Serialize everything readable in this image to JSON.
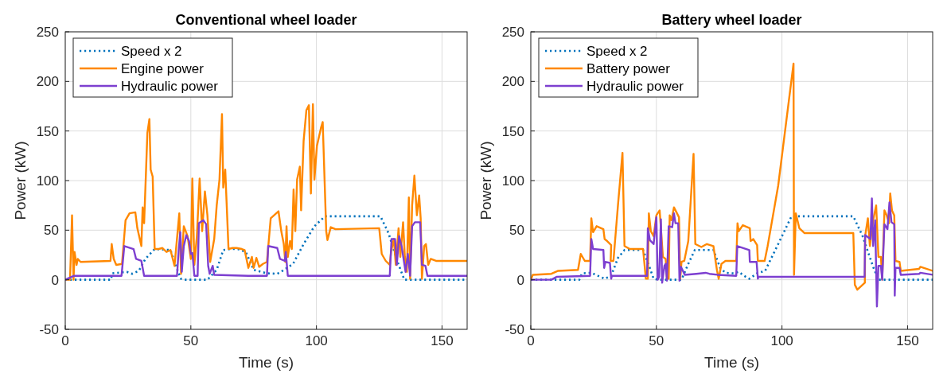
{
  "chart_data": [
    {
      "type": "line",
      "title": "Conventional wheel loader",
      "xlabel": "Time (s)",
      "ylabel": "Power (kW)",
      "xlim": [
        0,
        160
      ],
      "ylim": [
        -50,
        250
      ],
      "xticks": [
        0,
        50,
        100,
        150
      ],
      "yticks": [
        -50,
        0,
        50,
        100,
        150,
        200,
        250
      ],
      "grid": true,
      "legend": "top left",
      "series": [
        {
          "name": "Speed x 2",
          "color": "#0072bd",
          "line_style": "dotted",
          "x": [
            0,
            18.2,
            18.7,
            24.5,
            26.6,
            29.3,
            31.9,
            35.6,
            41.9,
            44,
            46.1,
            47.2,
            56.6,
            60.3,
            62.9,
            65.6,
            68.7,
            71.9,
            75,
            80.3,
            84.4,
            86.5,
            90.7,
            94.9,
            99.2,
            103.4,
            125.5,
            128.7,
            132.3,
            135,
            160
          ],
          "values": [
            0,
            0,
            6.5,
            8,
            6,
            9,
            21,
            31,
            30,
            14,
            1,
            0,
            0,
            10,
            30,
            31,
            31,
            28,
            10,
            6.5,
            6,
            9,
            16,
            36,
            54,
            64,
            64,
            47,
            18,
            0,
            0
          ]
        },
        {
          "name": "Engine power",
          "color": "#ff8800",
          "line_style": "solid",
          "x": [
            0,
            1.9,
            2.7,
            3.3,
            3.7,
            4.5,
            5,
            6.1,
            18,
            18.5,
            19.3,
            20.3,
            22.6,
            24,
            25.6,
            27.9,
            28.7,
            30.3,
            30.8,
            31.4,
            32.7,
            33.5,
            34,
            34.8,
            35.6,
            37.2,
            38.7,
            40.3,
            41.9,
            43.5,
            45.4,
            46.1,
            47.2,
            48.7,
            50,
            50.6,
            51.4,
            52.4,
            53.5,
            54.5,
            55.6,
            56.6,
            57.7,
            59.3,
            60.3,
            61.4,
            62.4,
            62.9,
            63.7,
            65,
            66.6,
            68.2,
            70.3,
            71.4,
            72.9,
            74.3,
            75,
            76.1,
            77.2,
            78.7,
            80.3,
            81.8,
            84.9,
            86,
            87,
            87.6,
            88.1,
            88.6,
            89.5,
            90.2,
            90.9,
            91.6,
            92.3,
            93.4,
            93.9,
            94.9,
            96,
            97,
            97.8,
            98.6,
            99.2,
            100.2,
            101.8,
            102.5,
            103.9,
            104.4,
            105.7,
            107.6,
            125,
            126,
            127.6,
            129.2,
            129.7,
            130.8,
            131.6,
            132.7,
            133.4,
            134.5,
            135.2,
            136,
            136.8,
            137.3,
            138.1,
            139,
            140,
            140.9,
            141.5,
            142,
            142.9,
            143.6,
            144.5,
            145.5,
            147.6,
            160
          ],
          "values": [
            0,
            0,
            65,
            0,
            28,
            15,
            21,
            18,
            19,
            36,
            21,
            15,
            16,
            60,
            67,
            68,
            52,
            34,
            73,
            57,
            148,
            162,
            111,
            104,
            31,
            31,
            32,
            28,
            30,
            14,
            67,
            6,
            54,
            44,
            21,
            102,
            15,
            44,
            102,
            49,
            89,
            65,
            18,
            41,
            75,
            101,
            167,
            93,
            111,
            31,
            32,
            32,
            31,
            30,
            12,
            23,
            12,
            22,
            13,
            16,
            18,
            62,
            69,
            49,
            36,
            18,
            54,
            23,
            39,
            31,
            91,
            49,
            101,
            114,
            70,
            140,
            171,
            176,
            87,
            177,
            101,
            135,
            153,
            159,
            49,
            40,
            53,
            51,
            52,
            26,
            19,
            15,
            28,
            41,
            15,
            52,
            23,
            58,
            23,
            8,
            83,
            1,
            75,
            105,
            65,
            85,
            62,
            1,
            34,
            36,
            15,
            21,
            19,
            19
          ]
        },
        {
          "name": "Hydraulic power",
          "color": "#7d3fd0",
          "line_style": "solid",
          "x": [
            0,
            3.5,
            22.4,
            23.5,
            27.2,
            28.2,
            30.3,
            31.4,
            44.5,
            45.1,
            45.8,
            46.4,
            47.2,
            48.2,
            49.3,
            50,
            50.6,
            51.4,
            52.7,
            53.2,
            55,
            56.1,
            56.9,
            57.5,
            58.7,
            59.3,
            72.9,
            80.3,
            80.8,
            84.4,
            85.5,
            87.4,
            87.8,
            88.6,
            129.2,
            129.9,
            131.3,
            132,
            132.9,
            133.9,
            135.5,
            136.4,
            137.3,
            138.1,
            139.2,
            141.3,
            142,
            143.4,
            144.2,
            160
          ],
          "values": [
            0,
            4,
            4,
            34,
            31,
            21,
            19,
            4,
            4,
            28,
            48,
            8,
            34,
            45,
            39,
            26,
            27,
            4,
            4,
            57,
            60,
            56,
            14,
            6,
            14,
            5,
            4,
            4,
            34,
            32,
            21,
            19,
            28,
            4,
            4,
            41,
            41,
            15,
            44,
            34,
            8,
            26,
            4,
            54,
            58,
            58,
            15,
            14,
            4,
            4
          ]
        }
      ]
    },
    {
      "type": "line",
      "title": "Battery wheel loader",
      "xlabel": "Time (s)",
      "ylabel": "Power (kW)",
      "xlim": [
        0,
        160
      ],
      "ylim": [
        -50,
        250
      ],
      "xticks": [
        0,
        50,
        100,
        150
      ],
      "yticks": [
        -50,
        0,
        50,
        100,
        150,
        200,
        250
      ],
      "grid": true,
      "legend": "top left",
      "series": [
        {
          "name": "Speed x 2",
          "color": "#0072bd",
          "line_style": "dotted",
          "x": [
            0,
            19.3,
            20.4,
            24.1,
            26.7,
            29.4,
            32,
            34.7,
            37.3,
            44.7,
            46.8,
            48.9,
            51,
            60,
            62.7,
            65.3,
            72.7,
            75.4,
            77.5,
            80.7,
            82.8,
            84.9,
            87,
            90.1,
            93.3,
            98.5,
            103.8,
            104.8,
            128.4,
            132.1,
            136.3,
            138.4,
            160
          ],
          "values": [
            0,
            0,
            6.5,
            7,
            4,
            1,
            4,
            22,
            30,
            30,
            16,
            1,
            0,
            0,
            16,
            30,
            30,
            12,
            7,
            6.5,
            8,
            4,
            1,
            6.5,
            9,
            36,
            64,
            64,
            64,
            44,
            13,
            0,
            0
          ]
        },
        {
          "name": "Battery power",
          "color": "#ff8800",
          "line_style": "solid",
          "x": [
            0,
            0.8,
            8.2,
            10.9,
            18.8,
            19.9,
            21.5,
            23.6,
            24.1,
            24.8,
            26.2,
            28.9,
            29.4,
            30.4,
            32,
            31.8,
            32.9,
            34.7,
            36.5,
            37.3,
            39.4,
            44.7,
            45.8,
            46.6,
            47,
            47.8,
            48.9,
            50,
            51.3,
            52.6,
            53.7,
            54.2,
            54.9,
            55.3,
            56,
            57,
            57.6,
            59,
            59.5,
            60,
            61.1,
            62.7,
            64.8,
            65.5,
            67.9,
            70.1,
            72.7,
            74.1,
            74.8,
            75.9,
            77.5,
            81.8,
            82.3,
            82.8,
            84.4,
            87.2,
            87.5,
            88.6,
            90.1,
            90.4,
            93.1,
            94.3,
            98.5,
            104.6,
            104.8,
            105.5,
            106.9,
            109,
            128.4,
            129,
            130,
            133,
            133.1,
            134.2,
            135,
            136.3,
            137.5,
            138.4,
            139.4,
            139.9,
            140.8,
            141.7,
            142.6,
            143.1,
            143.8,
            144.7,
            145.2,
            146.8,
            147.3,
            154.6,
            155.1,
            160
          ],
          "values": [
            0,
            5,
            6,
            9,
            10,
            26,
            19,
            19,
            62,
            48,
            54,
            51,
            41,
            39,
            35,
            19,
            19,
            75,
            128,
            34,
            31,
            31,
            1,
            1,
            67,
            49,
            44,
            65,
            70,
            23,
            21,
            1,
            1,
            65,
            60,
            73,
            70,
            63,
            1,
            18,
            19,
            39,
            127,
            36,
            33,
            36,
            34,
            10,
            1,
            16,
            19,
            19,
            57,
            49,
            55,
            52,
            39,
            41,
            35,
            19,
            19,
            34,
            95,
            218,
            5,
            67,
            52,
            47,
            47,
            -5,
            -10,
            -3,
            44,
            62,
            34,
            60,
            75,
            23,
            23,
            0,
            70,
            65,
            57,
            87,
            70,
            65,
            19,
            18,
            9,
            11,
            13,
            9
          ]
        },
        {
          "name": "Hydraulic power",
          "color": "#7d3fd0",
          "line_style": "solid",
          "x": [
            0,
            8.2,
            10.4,
            23.6,
            24.1,
            24.8,
            28.9,
            29.2,
            29.7,
            31.5,
            32,
            32.3,
            46.3,
            46.6,
            47.4,
            48.9,
            50,
            50.5,
            51.1,
            51.8,
            52.3,
            53.2,
            53.7,
            54.2,
            54.9,
            56.3,
            57,
            57.6,
            58.7,
            59.2,
            59.8,
            61.3,
            65.9,
            69.6,
            71.1,
            74.3,
            81.8,
            82.2,
            87,
            87.2,
            89.9,
            90.4,
            90.7,
            132.9,
            133.1,
            135.2,
            135.8,
            136.3,
            137.1,
            137.8,
            138.4,
            139.4,
            139.9,
            140.8,
            142,
            142.8,
            143.6,
            144.7,
            144.9,
            145.2,
            146.8,
            147.3,
            154.6,
            155.1,
            160
          ],
          "values": [
            0,
            0,
            3,
            4,
            41,
            31,
            30,
            12,
            18,
            17,
            1,
            4,
            4,
            52,
            40,
            36,
            63,
            0,
            3,
            61,
            -3,
            14,
            16,
            -1,
            54,
            53,
            67,
            57,
            57,
            -1,
            13,
            5,
            6,
            7,
            6,
            5,
            4,
            34,
            30,
            18,
            18,
            1,
            3,
            3,
            45,
            41,
            82,
            34,
            60,
            -27,
            14,
            14,
            0,
            56,
            51,
            78,
            58,
            56,
            -16,
            12,
            12,
            5,
            6,
            7,
            5
          ]
        }
      ]
    }
  ]
}
